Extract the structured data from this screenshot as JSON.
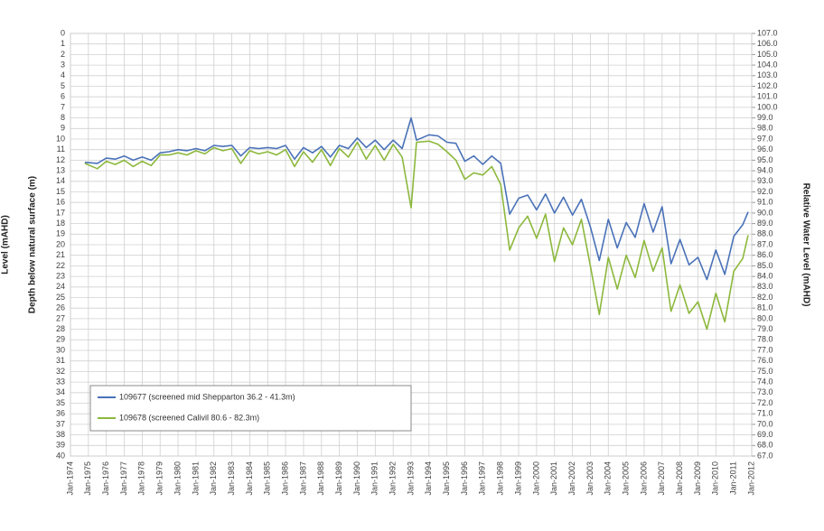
{
  "chart_data": {
    "type": "line",
    "ylabel": "Depth below natural surface (m)",
    "y2label": "Relative Water Level (mAHD)",
    "annotations": [
      "Level (mAHD)"
    ],
    "legend": "lower left",
    "grid": true,
    "xlim": [
      1974,
      2012
    ],
    "xticks": [
      {
        "value": 1974,
        "label": "Jan-1974"
      },
      {
        "value": 1975,
        "label": "Jan-1975"
      },
      {
        "value": 1976,
        "label": "Jan-1976"
      },
      {
        "value": 1977,
        "label": "Jan-1977"
      },
      {
        "value": 1978,
        "label": "Jan-1978"
      },
      {
        "value": 1979,
        "label": "Jan-1979"
      },
      {
        "value": 1980,
        "label": "Jan-1980"
      },
      {
        "value": 1981,
        "label": "Jan-1981"
      },
      {
        "value": 1982,
        "label": "Jan-1982"
      },
      {
        "value": 1983,
        "label": "Jan-1983"
      },
      {
        "value": 1984,
        "label": "Jan-1984"
      },
      {
        "value": 1985,
        "label": "Jan-1985"
      },
      {
        "value": 1986,
        "label": "Jan-1986"
      },
      {
        "value": 1987,
        "label": "Jan-1987"
      },
      {
        "value": 1988,
        "label": "Jan-1988"
      },
      {
        "value": 1989,
        "label": "Jan-1989"
      },
      {
        "value": 1990,
        "label": "Jan-1990"
      },
      {
        "value": 1991,
        "label": "Jan-1991"
      },
      {
        "value": 1992,
        "label": "Jan-1992"
      },
      {
        "value": 1993,
        "label": "Jan-1993"
      },
      {
        "value": 1994,
        "label": "Jan-1994"
      },
      {
        "value": 1995,
        "label": "Jan-1995"
      },
      {
        "value": 1996,
        "label": "Jan-1996"
      },
      {
        "value": 1997,
        "label": "Jan-1997"
      },
      {
        "value": 1998,
        "label": "Jan-1998"
      },
      {
        "value": 1999,
        "label": "Jan-1999"
      },
      {
        "value": 2000,
        "label": "Jan-2000"
      },
      {
        "value": 2001,
        "label": "Jan-2001"
      },
      {
        "value": 2002,
        "label": "Jan-2002"
      },
      {
        "value": 2003,
        "label": "Jan-2003"
      },
      {
        "value": 2004,
        "label": "Jan-2004"
      },
      {
        "value": 2005,
        "label": "Jan-2005"
      },
      {
        "value": 2006,
        "label": "Jan-2006"
      },
      {
        "value": 2007,
        "label": "Jan-2007"
      },
      {
        "value": 2008,
        "label": "Jan-2008"
      },
      {
        "value": 2009,
        "label": "Jan-2009"
      },
      {
        "value": 2010,
        "label": "Jan-2010"
      },
      {
        "value": 2011,
        "label": "Jan-2011"
      },
      {
        "value": 2012,
        "label": "Jan-2012"
      }
    ],
    "ylim": [
      40,
      0
    ],
    "yticks": [
      0,
      1,
      2,
      3,
      4,
      5,
      6,
      7,
      8,
      9,
      10,
      11,
      12,
      13,
      14,
      15,
      16,
      17,
      18,
      19,
      20,
      21,
      22,
      23,
      24,
      25,
      26,
      27,
      28,
      29,
      30,
      31,
      32,
      33,
      34,
      35,
      36,
      37,
      38,
      39,
      40
    ],
    "y2lim": [
      67,
      107
    ],
    "y2ticks": [
      {
        "value": 107,
        "label": "107.0"
      },
      {
        "value": 106,
        "label": "106.0"
      },
      {
        "value": 105,
        "label": "105.0"
      },
      {
        "value": 104,
        "label": "104.0"
      },
      {
        "value": 103,
        "label": "103.0"
      },
      {
        "value": 102,
        "label": "102.0"
      },
      {
        "value": 101,
        "label": "101.0"
      },
      {
        "value": 100,
        "label": "100.0"
      },
      {
        "value": 99,
        "label": "99.0"
      },
      {
        "value": 98,
        "label": "98.0"
      },
      {
        "value": 97,
        "label": "97.0"
      },
      {
        "value": 96,
        "label": "96.0"
      },
      {
        "value": 95,
        "label": "95.0"
      },
      {
        "value": 94,
        "label": "94.0"
      },
      {
        "value": 93,
        "label": "93.0"
      },
      {
        "value": 92,
        "label": "92.0"
      },
      {
        "value": 91,
        "label": "91.0"
      },
      {
        "value": 90,
        "label": "90.0"
      },
      {
        "value": 89,
        "label": "89.0"
      },
      {
        "value": 88,
        "label": "88.0"
      },
      {
        "value": 87,
        "label": "87.0"
      },
      {
        "value": 86,
        "label": "86.0"
      },
      {
        "value": 85,
        "label": "85.0"
      },
      {
        "value": 84,
        "label": "84.0"
      },
      {
        "value": 83,
        "label": "83.0"
      },
      {
        "value": 82,
        "label": "82.0"
      },
      {
        "value": 81,
        "label": "81.0"
      },
      {
        "value": 80,
        "label": "80.0"
      },
      {
        "value": 79,
        "label": "79.0"
      },
      {
        "value": 78,
        "label": "78.0"
      },
      {
        "value": 77,
        "label": "77.0"
      },
      {
        "value": 76,
        "label": "76.0"
      },
      {
        "value": 75,
        "label": "75.0"
      },
      {
        "value": 74,
        "label": "74.0"
      },
      {
        "value": 73,
        "label": "73.0"
      },
      {
        "value": 72,
        "label": "72.0"
      },
      {
        "value": 71,
        "label": "71.0"
      },
      {
        "value": 70,
        "label": "70.0"
      },
      {
        "value": 69,
        "label": "69.0"
      },
      {
        "value": 68,
        "label": "68.0"
      },
      {
        "value": 67,
        "label": "67.0"
      }
    ],
    "x": [
      1974.8,
      1975.5,
      1976,
      1976.5,
      1977,
      1977.5,
      1978,
      1978.5,
      1979,
      1979.5,
      1980,
      1980.5,
      1981,
      1981.5,
      1982,
      1982.5,
      1983,
      1983.5,
      1984,
      1984.5,
      1985,
      1985.5,
      1986,
      1986.5,
      1987,
      1987.5,
      1988,
      1988.5,
      1989,
      1989.5,
      1990,
      1990.5,
      1991,
      1991.5,
      1992,
      1992.5,
      1993,
      1993.3,
      1994,
      1994.5,
      1995,
      1995.5,
      1996,
      1996.5,
      1997,
      1997.5,
      1998,
      1998.5,
      1999,
      1999.5,
      2000,
      2000.5,
      2001,
      2001.5,
      2002,
      2002.5,
      2003,
      2003.5,
      2004,
      2004.5,
      2005,
      2005.5,
      2006,
      2006.5,
      2007,
      2007.5,
      2008,
      2008.5,
      2009,
      2009.5,
      2010,
      2010.5,
      2011,
      2011.5,
      2011.8
    ],
    "series": [
      {
        "name": "109677 (screened mid Shepparton 36.2 - 41.3m)",
        "color": "#4a72b8",
        "values": [
          12.2,
          12.3,
          11.8,
          11.9,
          11.6,
          12.0,
          11.7,
          12.0,
          11.3,
          11.2,
          11.0,
          11.1,
          10.9,
          11.1,
          10.6,
          10.7,
          10.6,
          11.6,
          10.8,
          10.9,
          10.8,
          10.9,
          10.6,
          11.9,
          10.8,
          11.3,
          10.7,
          11.7,
          10.6,
          10.9,
          9.9,
          10.8,
          10.1,
          11.0,
          10.1,
          10.9,
          8.0,
          10.1,
          9.6,
          9.7,
          10.3,
          10.4,
          12.1,
          11.6,
          12.4,
          11.6,
          12.3,
          17.1,
          15.6,
          15.3,
          16.7,
          15.2,
          17.0,
          15.5,
          17.2,
          15.7,
          18.3,
          21.5,
          17.6,
          20.3,
          17.9,
          19.3,
          16.1,
          18.8,
          16.4,
          21.8,
          19.5,
          21.9,
          21.2,
          23.3,
          20.5,
          22.8,
          19.2,
          18.1,
          16.9
        ]
      },
      {
        "name": "109678 (screened Calivil 80.6 - 82.3m)",
        "color": "#8cb83c",
        "values": [
          12.3,
          12.8,
          12.1,
          12.4,
          12.0,
          12.6,
          12.1,
          12.5,
          11.5,
          11.5,
          11.3,
          11.5,
          11.1,
          11.4,
          10.8,
          11.1,
          10.9,
          12.3,
          11.1,
          11.4,
          11.2,
          11.5,
          11.0,
          12.6,
          11.2,
          12.2,
          11.0,
          12.5,
          10.9,
          11.7,
          10.3,
          11.9,
          10.6,
          12.0,
          10.5,
          11.7,
          16.5,
          10.3,
          10.2,
          10.5,
          11.2,
          12.0,
          13.8,
          13.2,
          13.4,
          12.6,
          14.3,
          20.5,
          18.4,
          17.3,
          19.4,
          17.1,
          21.6,
          18.4,
          20.0,
          17.6,
          22.0,
          26.6,
          21.2,
          24.2,
          21.0,
          23.1,
          19.6,
          22.5,
          20.3,
          26.3,
          23.8,
          26.5,
          25.4,
          28.0,
          24.6,
          27.3,
          22.5,
          21.3,
          19.1
        ]
      }
    ]
  }
}
